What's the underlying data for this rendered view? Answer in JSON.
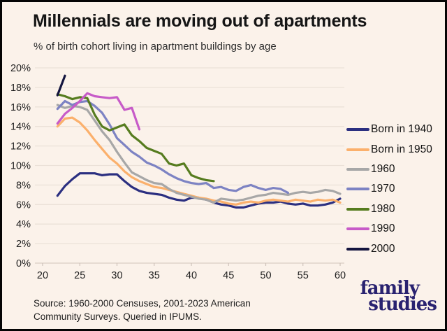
{
  "header": {
    "title": "Millennials are moving out of apartments",
    "subtitle": "% of birth cohort living in apartment buildings by age"
  },
  "source": {
    "line1": "Source: 1960-2000 Censuses, 2001-2023 American",
    "line2": "Community Surveys. Queried in IPUMS."
  },
  "logo": {
    "line1": "family",
    "line2": "studies",
    "color": "#292270"
  },
  "chart_data": {
    "type": "line",
    "title": "Millennials are moving out of apartments",
    "subtitle": "% of birth cohort living in apartment buildings by age",
    "xlabel": "",
    "ylabel": "",
    "xlim": [
      20,
      60
    ],
    "ylim": [
      0,
      20
    ],
    "grid": true,
    "legend_position": "right",
    "x_ticks": [
      20,
      25,
      30,
      35,
      40,
      45,
      50,
      55,
      60
    ],
    "y_ticks": [
      0,
      2,
      4,
      6,
      8,
      10,
      12,
      14,
      16,
      18,
      20
    ],
    "y_tick_suffix": "%",
    "series": [
      {
        "name": "Born in 1940",
        "color": "#2b2f80",
        "start_age": 22,
        "values": [
          6.9,
          7.9,
          8.6,
          9.2,
          9.2,
          9.2,
          9.0,
          9.1,
          9.1,
          8.4,
          7.8,
          7.4,
          7.2,
          7.1,
          7.0,
          6.7,
          6.5,
          6.4,
          6.7,
          6.7,
          6.5,
          6.2,
          6.0,
          5.9,
          5.7,
          5.7,
          5.9,
          6.1,
          6.2,
          6.2,
          6.3,
          6.1,
          6.0,
          6.1,
          5.9,
          5.9,
          6.0,
          6.2,
          6.6
        ]
      },
      {
        "name": "Born in 1950",
        "color": "#fbb06c",
        "start_age": 22,
        "values": [
          14.0,
          14.8,
          14.9,
          14.4,
          13.6,
          12.6,
          11.7,
          10.8,
          10.2,
          9.4,
          8.8,
          8.4,
          8.1,
          7.8,
          7.7,
          7.5,
          7.3,
          7.1,
          6.9,
          6.7,
          6.6,
          6.4,
          6.3,
          6.1,
          6.0,
          6.2,
          6.3,
          6.2,
          6.4,
          6.5,
          6.4,
          6.3,
          6.5,
          6.4,
          6.3,
          6.5,
          6.4,
          6.5,
          6.2
        ]
      },
      {
        "name": "1960",
        "color": "#a7a7a7",
        "start_age": 22,
        "values": [
          16.2,
          15.9,
          16.1,
          16.0,
          15.7,
          14.6,
          13.5,
          12.6,
          11.4,
          10.3,
          9.3,
          8.9,
          8.5,
          8.2,
          8.1,
          7.6,
          7.2,
          7.0,
          6.8,
          6.6,
          6.5,
          6.2,
          6.6,
          6.5,
          6.4,
          6.5,
          6.7,
          6.9,
          7.0,
          7.2,
          7.1,
          7.0,
          7.2,
          7.3,
          7.2,
          7.3,
          7.5,
          7.4,
          7.1
        ]
      },
      {
        "name": "1970",
        "color": "#7d83c3",
        "start_age": 22,
        "values": [
          15.8,
          16.6,
          16.2,
          16.5,
          16.6,
          16.1,
          15.4,
          14.2,
          12.8,
          12.1,
          11.4,
          10.9,
          10.3,
          10.0,
          9.6,
          9.1,
          8.7,
          8.4,
          8.2,
          8.1,
          8.2,
          7.7,
          7.8,
          7.5,
          7.4,
          7.8,
          8.0,
          7.7,
          7.5,
          7.7,
          7.6,
          7.2
        ]
      },
      {
        "name": "1980",
        "color": "#567c1f",
        "start_age": 22,
        "values": [
          17.3,
          17.1,
          16.8,
          17.0,
          16.9,
          15.2,
          14.0,
          13.6,
          13.9,
          14.2,
          13.1,
          12.5,
          11.8,
          11.5,
          11.2,
          10.2,
          10.0,
          10.2,
          9.0,
          8.7,
          8.5,
          8.4
        ]
      },
      {
        "name": "1990",
        "color": "#c75bc8",
        "start_age": 22,
        "values": [
          14.3,
          15.3,
          15.9,
          16.6,
          17.4,
          17.1,
          17.0,
          16.9,
          17.0,
          15.7,
          15.9,
          13.7
        ]
      },
      {
        "name": "2000",
        "color": "#14153f",
        "start_age": 22,
        "values": [
          17.2,
          19.2
        ]
      }
    ]
  }
}
